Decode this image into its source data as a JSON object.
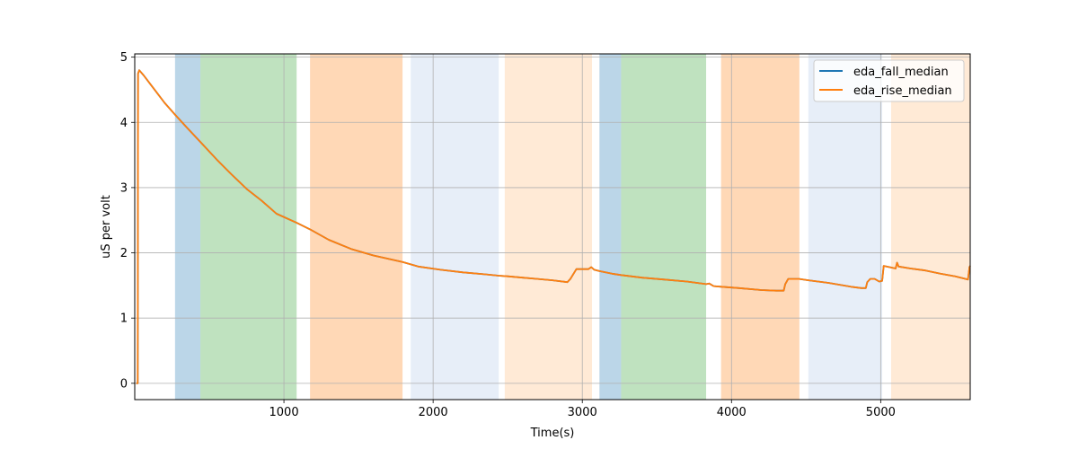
{
  "chart_data": {
    "type": "line",
    "title": "",
    "xlabel": "Time(s)",
    "ylabel": "uS per volt",
    "xlim": [
      0,
      5600
    ],
    "ylim": [
      -0.25,
      5.05
    ],
    "grid": true,
    "legend_position": "upper right",
    "x_ticks": [
      1000,
      2000,
      3000,
      4000,
      5000
    ],
    "x_tick_labels": [
      "1000",
      "2000",
      "3000",
      "4000",
      "5000"
    ],
    "y_ticks": [
      0,
      1,
      2,
      3,
      4,
      5
    ],
    "y_tick_labels": [
      "0",
      "1",
      "2",
      "3",
      "4",
      "5"
    ],
    "spans": [
      {
        "start": 270,
        "end": 440,
        "color": "#1f77b4",
        "opacity": 0.3
      },
      {
        "start": 440,
        "end": 1085,
        "color": "#2ca02c",
        "opacity": 0.3
      },
      {
        "start": 1175,
        "end": 1795,
        "color": "#ff7f0e",
        "opacity": 0.3
      },
      {
        "start": 1850,
        "end": 2440,
        "color": "#aec7e8",
        "opacity": 0.3
      },
      {
        "start": 2480,
        "end": 3065,
        "color": "#ffbb78",
        "opacity": 0.3
      },
      {
        "start": 3115,
        "end": 3260,
        "color": "#1f77b4",
        "opacity": 0.3
      },
      {
        "start": 3260,
        "end": 3830,
        "color": "#2ca02c",
        "opacity": 0.3
      },
      {
        "start": 3930,
        "end": 4455,
        "color": "#ff7f0e",
        "opacity": 0.3
      },
      {
        "start": 4515,
        "end": 5010,
        "color": "#aec7e8",
        "opacity": 0.3
      },
      {
        "start": 5070,
        "end": 5600,
        "color": "#ffbb78",
        "opacity": 0.3
      }
    ],
    "series": [
      {
        "name": "eda_fall_median",
        "color": "#1f77b4",
        "points": [
          [
            10,
            0
          ],
          [
            20,
            0
          ],
          [
            22,
            4.75
          ],
          [
            30,
            4.8
          ],
          [
            60,
            4.72
          ],
          [
            100,
            4.6
          ],
          [
            150,
            4.45
          ],
          [
            200,
            4.3
          ],
          [
            270,
            4.12
          ],
          [
            350,
            3.92
          ],
          [
            440,
            3.7
          ],
          [
            550,
            3.43
          ],
          [
            650,
            3.2
          ],
          [
            750,
            2.98
          ],
          [
            850,
            2.8
          ],
          [
            950,
            2.6
          ],
          [
            1085,
            2.46
          ],
          [
            1175,
            2.36
          ],
          [
            1300,
            2.2
          ],
          [
            1450,
            2.06
          ],
          [
            1600,
            1.96
          ],
          [
            1795,
            1.86
          ],
          [
            1900,
            1.79
          ],
          [
            2050,
            1.74
          ],
          [
            2200,
            1.7
          ],
          [
            2350,
            1.67
          ],
          [
            2440,
            1.65
          ],
          [
            2500,
            1.64
          ],
          [
            2600,
            1.62
          ],
          [
            2700,
            1.6
          ],
          [
            2800,
            1.58
          ],
          [
            2900,
            1.55
          ],
          [
            2920,
            1.6
          ],
          [
            2960,
            1.75
          ],
          [
            3000,
            1.75
          ],
          [
            3040,
            1.75
          ],
          [
            3060,
            1.78
          ],
          [
            3080,
            1.74
          ],
          [
            3115,
            1.72
          ],
          [
            3200,
            1.68
          ],
          [
            3260,
            1.66
          ],
          [
            3400,
            1.62
          ],
          [
            3550,
            1.59
          ],
          [
            3700,
            1.56
          ],
          [
            3830,
            1.52
          ],
          [
            3850,
            1.53
          ],
          [
            3880,
            1.49
          ],
          [
            3930,
            1.48
          ],
          [
            4050,
            1.46
          ],
          [
            4200,
            1.43
          ],
          [
            4300,
            1.42
          ],
          [
            4350,
            1.42
          ],
          [
            4360,
            1.52
          ],
          [
            4380,
            1.6
          ],
          [
            4455,
            1.6
          ],
          [
            4515,
            1.58
          ],
          [
            4650,
            1.54
          ],
          [
            4800,
            1.48
          ],
          [
            4870,
            1.46
          ],
          [
            4900,
            1.46
          ],
          [
            4910,
            1.55
          ],
          [
            4930,
            1.6
          ],
          [
            4960,
            1.6
          ],
          [
            4990,
            1.56
          ],
          [
            5010,
            1.57
          ],
          [
            5020,
            1.8
          ],
          [
            5060,
            1.78
          ],
          [
            5100,
            1.76
          ],
          [
            5110,
            1.85
          ],
          [
            5120,
            1.79
          ],
          [
            5200,
            1.76
          ],
          [
            5300,
            1.73
          ],
          [
            5400,
            1.68
          ],
          [
            5500,
            1.64
          ],
          [
            5585,
            1.59
          ],
          [
            5595,
            1.78
          ],
          [
            5600,
            1.8
          ]
        ]
      },
      {
        "name": "eda_rise_median",
        "color": "#ff7f0e",
        "points": [
          [
            10,
            0
          ],
          [
            20,
            0
          ],
          [
            22,
            4.75
          ],
          [
            30,
            4.8
          ],
          [
            60,
            4.72
          ],
          [
            100,
            4.6
          ],
          [
            150,
            4.45
          ],
          [
            200,
            4.3
          ],
          [
            270,
            4.12
          ],
          [
            350,
            3.92
          ],
          [
            440,
            3.7
          ],
          [
            550,
            3.43
          ],
          [
            650,
            3.2
          ],
          [
            750,
            2.98
          ],
          [
            850,
            2.8
          ],
          [
            950,
            2.6
          ],
          [
            1085,
            2.46
          ],
          [
            1175,
            2.36
          ],
          [
            1300,
            2.2
          ],
          [
            1450,
            2.06
          ],
          [
            1600,
            1.96
          ],
          [
            1795,
            1.86
          ],
          [
            1900,
            1.79
          ],
          [
            2050,
            1.74
          ],
          [
            2200,
            1.7
          ],
          [
            2350,
            1.67
          ],
          [
            2440,
            1.65
          ],
          [
            2500,
            1.64
          ],
          [
            2600,
            1.62
          ],
          [
            2700,
            1.6
          ],
          [
            2800,
            1.58
          ],
          [
            2900,
            1.55
          ],
          [
            2920,
            1.6
          ],
          [
            2960,
            1.75
          ],
          [
            3000,
            1.75
          ],
          [
            3040,
            1.75
          ],
          [
            3060,
            1.78
          ],
          [
            3080,
            1.74
          ],
          [
            3115,
            1.72
          ],
          [
            3200,
            1.68
          ],
          [
            3260,
            1.66
          ],
          [
            3400,
            1.62
          ],
          [
            3550,
            1.59
          ],
          [
            3700,
            1.56
          ],
          [
            3830,
            1.52
          ],
          [
            3850,
            1.53
          ],
          [
            3880,
            1.49
          ],
          [
            3930,
            1.48
          ],
          [
            4050,
            1.46
          ],
          [
            4200,
            1.43
          ],
          [
            4300,
            1.42
          ],
          [
            4350,
            1.42
          ],
          [
            4360,
            1.52
          ],
          [
            4380,
            1.6
          ],
          [
            4455,
            1.6
          ],
          [
            4515,
            1.58
          ],
          [
            4650,
            1.54
          ],
          [
            4800,
            1.48
          ],
          [
            4870,
            1.46
          ],
          [
            4900,
            1.46
          ],
          [
            4910,
            1.55
          ],
          [
            4930,
            1.6
          ],
          [
            4960,
            1.6
          ],
          [
            4990,
            1.56
          ],
          [
            5010,
            1.57
          ],
          [
            5020,
            1.8
          ],
          [
            5060,
            1.78
          ],
          [
            5100,
            1.76
          ],
          [
            5110,
            1.85
          ],
          [
            5120,
            1.79
          ],
          [
            5200,
            1.76
          ],
          [
            5300,
            1.73
          ],
          [
            5400,
            1.68
          ],
          [
            5500,
            1.64
          ],
          [
            5585,
            1.59
          ],
          [
            5595,
            1.78
          ],
          [
            5600,
            1.8
          ]
        ]
      }
    ]
  }
}
